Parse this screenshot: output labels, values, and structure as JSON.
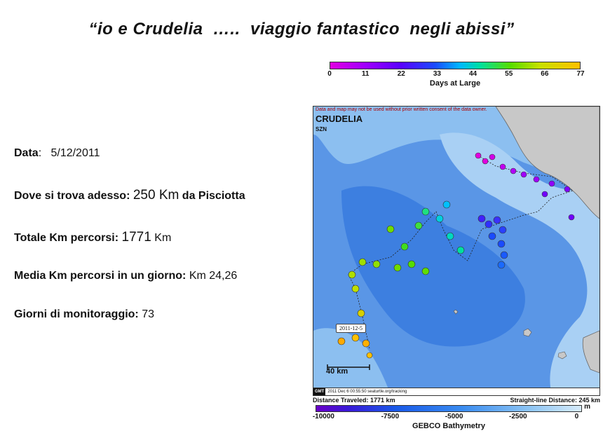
{
  "title": "“io e Crudelia  …..  viaggio fantastico  negli abissi”",
  "days_colorbar": {
    "ticks": [
      "0",
      "11",
      "22",
      "33",
      "44",
      "55",
      "66",
      "77"
    ],
    "caption": "Days at Large"
  },
  "info": {
    "data_label": "Data",
    "data_value": "5/12/2011",
    "dove_label": "Dove si trova adesso:",
    "dove_value": "250 Km",
    "dove_suffix": "da Pisciotta",
    "totale_label": "Totale Km percorsi:",
    "totale_value": "1771",
    "totale_unit": "Km",
    "media_label": "Media Km percorsi in un giorno:",
    "media_value": "Km 24,26",
    "giorni_label": "Giorni di monitoraggio:",
    "giorni_value": "73"
  },
  "map": {
    "disclaimer": "Data and map may not be used without prior written consent of the data owner.",
    "animal": "CRUDELIA",
    "org": "SZN",
    "date_label": "2011-12-5",
    "scale_label": "40 km",
    "gmt": "GMT",
    "gmt_timestamp": "2011 Dec 6 00:55:50",
    "site": "seaturtle.org/tracking"
  },
  "distance": {
    "traveled": "Distance Traveled: 1771 km",
    "straight": "Straight-line Distance: 245 km"
  },
  "bathy_colorbar": {
    "ticks": [
      "-10000",
      "-7500",
      "-5000",
      "-2500",
      "0"
    ],
    "unit": "m",
    "caption": "GEBCO Bathymetry"
  },
  "colors": {
    "ocean_deep": "#3d7fe0",
    "ocean_mid": "#6aa6ec",
    "ocean_shallow": "#a9d0f4",
    "land": "#c8c8c8"
  }
}
